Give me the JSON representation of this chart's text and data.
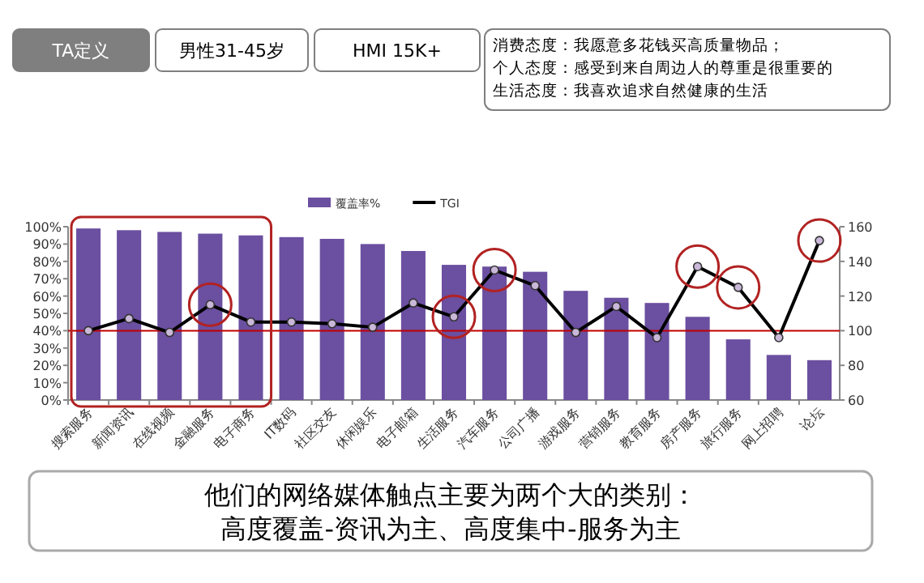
{
  "chart_data": {
    "type": "bar",
    "categories": [
      "搜索服务",
      "新闻资讯",
      "在线视频",
      "金融服务",
      "电子商务",
      "IT数码",
      "社区交友",
      "休闲娱乐",
      "电子邮箱",
      "生活服务",
      "汽车服务",
      "公司广播",
      "游戏服务",
      "营销服务",
      "教育服务",
      "房产服务",
      "旅行服务",
      "网上招聘",
      "论坛"
    ],
    "series": [
      {
        "name": "覆盖率%",
        "color": "#6b4fa0",
        "values": [
          99,
          98,
          97,
          96,
          95,
          94,
          93,
          90,
          86,
          78,
          77,
          74,
          63,
          59,
          56,
          48,
          35,
          26,
          23
        ]
      },
      {
        "name": "TGI",
        "type": "line",
        "axis": "y2",
        "color": "#000000",
        "values": [
          100,
          107,
          99,
          115,
          105,
          105,
          104,
          102,
          116,
          108,
          135,
          126,
          99,
          114,
          96,
          137,
          125,
          96,
          152
        ]
      }
    ],
    "ylim": [
      0,
      100
    ],
    "yticks": [
      {
        "value": 0,
        "label": "0%"
      },
      {
        "value": 10,
        "label": "10%"
      },
      {
        "value": 20,
        "label": "20%"
      },
      {
        "value": 30,
        "label": "30%"
      },
      {
        "value": 40,
        "label": "40%"
      },
      {
        "value": 50,
        "label": "50%"
      },
      {
        "value": 60,
        "label": "60%"
      },
      {
        "value": 70,
        "label": "70%"
      },
      {
        "value": 80,
        "label": "80%"
      },
      {
        "value": 90,
        "label": "90%"
      },
      {
        "value": 100,
        "label": "100%"
      }
    ],
    "y2lim": [
      60,
      160
    ],
    "y2ticks": [
      60,
      80,
      100,
      120,
      140,
      160
    ],
    "ref_lines": [
      {
        "axis": "y2",
        "value": 100,
        "color": "#c00000"
      }
    ],
    "marker": "circle",
    "legend": "top",
    "grid": false,
    "annotations": [
      "TA定义",
      "男性31-45岁",
      "HMI  15K+",
      "消费态度：我愿意多花钱买高质量物品；",
      "个人态度：感受到来自周边人的尊重是很重要的",
      "生活态度：我喜欢追求自然健康的生活",
      "他们的网络媒体触点主要为两个大的类别：",
      "高度覆盖-资讯为主、高度集中-服务为主"
    ]
  }
}
